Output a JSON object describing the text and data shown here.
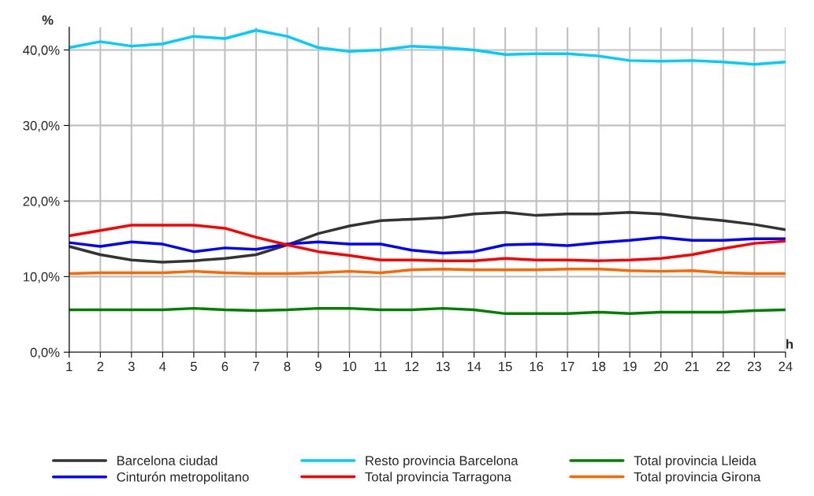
{
  "chart_data": {
    "type": "line",
    "xlabel": "h",
    "ylabel": "%",
    "x": [
      1,
      2,
      3,
      4,
      5,
      6,
      7,
      8,
      9,
      10,
      11,
      12,
      13,
      14,
      15,
      16,
      17,
      18,
      19,
      20,
      21,
      22,
      23,
      24
    ],
    "xlim": [
      1,
      24
    ],
    "xticks": [
      1,
      2,
      3,
      4,
      5,
      6,
      7,
      8,
      9,
      10,
      11,
      12,
      13,
      14,
      15,
      16,
      17,
      18,
      19,
      20,
      21,
      22,
      23,
      24
    ],
    "ylim": [
      0,
      43
    ],
    "yticks": [
      {
        "value": 0,
        "label": "0,0%"
      },
      {
        "value": 10,
        "label": "10,0%"
      },
      {
        "value": 20,
        "label": "20,0%"
      },
      {
        "value": 30,
        "label": "30,0%"
      },
      {
        "value": 40,
        "label": "40,0%"
      }
    ],
    "grid": true,
    "legend": "bottom",
    "marker": "none",
    "line_style": "solid",
    "series": [
      {
        "name": "Barcelona ciudad",
        "color": "#333333",
        "values": [
          14.0,
          12.9,
          12.2,
          11.9,
          12.1,
          12.4,
          12.9,
          14.2,
          15.7,
          16.7,
          17.4,
          17.6,
          17.8,
          18.3,
          18.5,
          18.1,
          18.3,
          18.3,
          18.5,
          18.3,
          17.8,
          17.4,
          16.9,
          16.2
        ]
      },
      {
        "name": "Cinturón metropolitano",
        "color": "#0000ff",
        "values": [
          14.5,
          14.0,
          14.6,
          14.3,
          13.3,
          13.8,
          13.6,
          14.3,
          14.6,
          14.3,
          14.3,
          13.5,
          13.1,
          13.3,
          14.2,
          14.3,
          14.1,
          14.5,
          14.8,
          15.2,
          14.8,
          14.8,
          15.0,
          15.0
        ]
      },
      {
        "name": "Resto provincia Barcelona",
        "color": "#00ccff",
        "values": [
          40.3,
          41.1,
          40.5,
          40.8,
          41.8,
          41.5,
          42.6,
          41.8,
          40.3,
          39.8,
          40.0,
          40.5,
          40.3,
          40.0,
          39.4,
          39.5,
          39.5,
          39.2,
          38.6,
          38.5,
          38.6,
          38.4,
          38.1,
          38.4
        ]
      },
      {
        "name": "Total provincia Tarragona",
        "color": "#ff0000",
        "values": [
          15.4,
          16.1,
          16.8,
          16.8,
          16.8,
          16.4,
          15.2,
          14.2,
          13.3,
          12.8,
          12.2,
          12.2,
          12.1,
          12.1,
          12.4,
          12.2,
          12.2,
          12.1,
          12.2,
          12.4,
          12.9,
          13.7,
          14.4,
          14.7
        ]
      },
      {
        "name": "Total provincia Lleida",
        "color": "#008000",
        "values": [
          5.6,
          5.6,
          5.6,
          5.6,
          5.8,
          5.6,
          5.5,
          5.6,
          5.8,
          5.8,
          5.6,
          5.6,
          5.8,
          5.6,
          5.1,
          5.1,
          5.1,
          5.3,
          5.1,
          5.3,
          5.3,
          5.3,
          5.5,
          5.6
        ]
      },
      {
        "name": "Total provincia Girona",
        "color": "#ff6600",
        "values": [
          10.4,
          10.5,
          10.5,
          10.5,
          10.7,
          10.5,
          10.4,
          10.4,
          10.5,
          10.7,
          10.5,
          10.9,
          11.0,
          10.9,
          10.9,
          10.9,
          11.0,
          11.0,
          10.8,
          10.7,
          10.8,
          10.5,
          10.4,
          10.4
        ]
      }
    ]
  }
}
